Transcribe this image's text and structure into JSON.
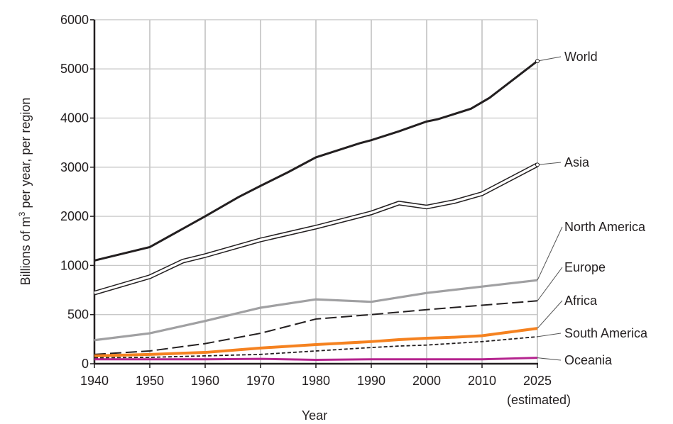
{
  "chart_data": {
    "type": "line",
    "title": "",
    "xlabel": "Year",
    "ylabel": "Billions of m",
    "ylabel_sup": "3",
    "ylabel_suffix": " per year, per region",
    "x_ticks": [
      1940,
      1950,
      1960,
      1970,
      1980,
      1990,
      2000,
      2010,
      2025
    ],
    "x_tick_labels": [
      "1940",
      "1950",
      "1960",
      "1970",
      "1980",
      "1990",
      "2000",
      "2010",
      "2025"
    ],
    "x_note": "(estimated)",
    "y_ticks": [
      0,
      500,
      1000,
      2000,
      3000,
      4000,
      5000,
      6000
    ],
    "y_tick_labels": [
      "0",
      "500",
      "1000",
      "2000",
      "3000",
      "4000",
      "5000",
      "6000"
    ],
    "ylim": [
      0,
      6000
    ],
    "grid": true,
    "legend_placement": "right (direct labels)",
    "series": [
      {
        "name": "World",
        "color": "#231f20",
        "style": "solid-thick",
        "x": [
          1940,
          1950,
          1960,
          1966,
          1970,
          1975,
          1980,
          1988,
          1990,
          1995,
          2000,
          2002,
          2008,
          2012,
          2025
        ],
        "y": [
          1100,
          1375,
          2000,
          2390,
          2620,
          2900,
          3200,
          3490,
          3550,
          3730,
          3930,
          3975,
          4190,
          4410,
          5160
        ]
      },
      {
        "name": "Asia",
        "color": "#231f20",
        "style": "double",
        "x": [
          1940,
          1950,
          1956,
          1960,
          1970,
          1980,
          1990,
          1995,
          2000,
          2005,
          2010,
          2025
        ],
        "y": [
          720,
          885,
          1090,
          1200,
          1520,
          1780,
          2070,
          2270,
          2190,
          2300,
          2460,
          3050
        ]
      },
      {
        "name": "North America",
        "color": "#a0a0a2",
        "style": "solid-gray",
        "x": [
          1940,
          1950,
          1960,
          1970,
          1980,
          1990,
          1995,
          2000,
          2010,
          2025
        ],
        "y": [
          240,
          310,
          435,
          570,
          655,
          630,
          675,
          720,
          785,
          850
        ]
      },
      {
        "name": "Europe",
        "color": "#231f20",
        "style": "long-dash",
        "x": [
          1940,
          1950,
          1960,
          1970,
          1980,
          1990,
          2000,
          2010,
          2025
        ],
        "y": [
          95,
          130,
          205,
          310,
          455,
          500,
          550,
          595,
          640
        ]
      },
      {
        "name": "Africa",
        "color": "#f58220",
        "style": "solid-thick",
        "x": [
          1940,
          1950,
          1960,
          1970,
          1980,
          1990,
          1995,
          2000,
          2005,
          2010,
          2025
        ],
        "y": [
          80,
          95,
          115,
          160,
          195,
          225,
          245,
          260,
          270,
          285,
          360
        ]
      },
      {
        "name": "South America",
        "color": "#231f20",
        "style": "short-dash",
        "x": [
          1940,
          1950,
          1960,
          1970,
          1980,
          1990,
          1995,
          2000,
          2010,
          2025
        ],
        "y": [
          60,
          65,
          80,
          95,
          130,
          165,
          180,
          190,
          225,
          275
        ]
      },
      {
        "name": "Oceania",
        "color": "#b5248f",
        "style": "solid-thick",
        "x": [
          1940,
          1950,
          1960,
          1970,
          1980,
          1990,
          2000,
          2010,
          2025
        ],
        "y": [
          45,
          45,
          45,
          50,
          40,
          45,
          45,
          45,
          60
        ]
      }
    ]
  }
}
